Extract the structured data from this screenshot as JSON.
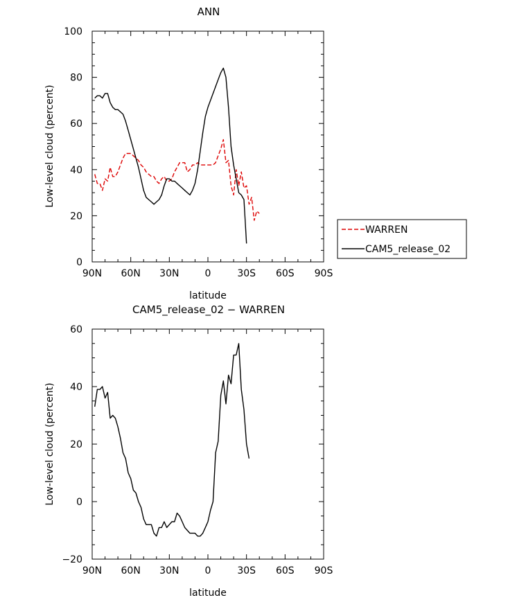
{
  "chart_data": [
    {
      "type": "line",
      "title": "ANN",
      "xlabel": "latitude",
      "ylabel": "Low-level cloud (percent)",
      "xlim": [
        90,
        -90
      ],
      "ylim": [
        0,
        100
      ],
      "xticks": [
        90,
        60,
        30,
        0,
        -30,
        -60,
        -90
      ],
      "xtick_labels": [
        "90N",
        "60N",
        "30N",
        "0",
        "30S",
        "60S",
        "90S"
      ],
      "yticks": [
        0,
        20,
        40,
        60,
        80,
        100
      ],
      "ytick_labels": [
        "0",
        "20",
        "40",
        "60",
        "80",
        "100"
      ],
      "legend_position": "right",
      "series": [
        {
          "name": "WARREN",
          "color": "#dd0000",
          "dash": "dashed",
          "points": [
            [
              88,
              38
            ],
            [
              86,
              34
            ],
            [
              84,
              34
            ],
            [
              82,
              31
            ],
            [
              80,
              36
            ],
            [
              78,
              35
            ],
            [
              76,
              41
            ],
            [
              74,
              37
            ],
            [
              72,
              37
            ],
            [
              70,
              39
            ],
            [
              68,
              42
            ],
            [
              66,
              45
            ],
            [
              64,
              47
            ],
            [
              62,
              47
            ],
            [
              60,
              47
            ],
            [
              58,
              46
            ],
            [
              56,
              45
            ],
            [
              54,
              44
            ],
            [
              52,
              42
            ],
            [
              50,
              41
            ],
            [
              48,
              39
            ],
            [
              46,
              38
            ],
            [
              44,
              37
            ],
            [
              42,
              37
            ],
            [
              40,
              35
            ],
            [
              38,
              34
            ],
            [
              36,
              36
            ],
            [
              34,
              37
            ],
            [
              32,
              35
            ],
            [
              30,
              35
            ],
            [
              28,
              36
            ],
            [
              26,
              39
            ],
            [
              24,
              41
            ],
            [
              22,
              43
            ],
            [
              20,
              43
            ],
            [
              18,
              43
            ],
            [
              16,
              39
            ],
            [
              14,
              40
            ],
            [
              12,
              42
            ],
            [
              10,
              42
            ],
            [
              8,
              43
            ],
            [
              6,
              42
            ],
            [
              4,
              42
            ],
            [
              2,
              42
            ],
            [
              0,
              42
            ],
            [
              -2,
              42
            ],
            [
              -4,
              42
            ],
            [
              -6,
              43
            ],
            [
              -8,
              46
            ],
            [
              -10,
              49
            ],
            [
              -12,
              53
            ],
            [
              -14,
              43
            ],
            [
              -16,
              44
            ],
            [
              -18,
              33
            ],
            [
              -20,
              29
            ],
            [
              -22,
              40
            ],
            [
              -24,
              33
            ],
            [
              -26,
              39
            ],
            [
              -28,
              32
            ],
            [
              -30,
              33
            ],
            [
              -32,
              25
            ],
            [
              -34,
              28
            ],
            [
              -36,
              18
            ],
            [
              -38,
              22
            ],
            [
              -40,
              21
            ]
          ]
        },
        {
          "name": "CAM5_release_02",
          "color": "#000000",
          "dash": "solid",
          "points": [
            [
              88,
              71
            ],
            [
              86,
              72
            ],
            [
              84,
              72
            ],
            [
              82,
              71
            ],
            [
              80,
              73
            ],
            [
              78,
              73
            ],
            [
              76,
              69
            ],
            [
              74,
              67
            ],
            [
              72,
              66
            ],
            [
              70,
              66
            ],
            [
              68,
              65
            ],
            [
              66,
              64
            ],
            [
              64,
              61
            ],
            [
              62,
              57
            ],
            [
              60,
              53
            ],
            [
              58,
              49
            ],
            [
              56,
              45
            ],
            [
              54,
              41
            ],
            [
              52,
              36
            ],
            [
              50,
              31
            ],
            [
              48,
              28
            ],
            [
              46,
              27
            ],
            [
              44,
              26
            ],
            [
              42,
              25
            ],
            [
              40,
              26
            ],
            [
              38,
              27
            ],
            [
              36,
              29
            ],
            [
              34,
              33
            ],
            [
              32,
              36
            ],
            [
              30,
              36
            ],
            [
              28,
              35
            ],
            [
              26,
              35
            ],
            [
              24,
              34
            ],
            [
              22,
              33
            ],
            [
              20,
              32
            ],
            [
              18,
              31
            ],
            [
              16,
              30
            ],
            [
              14,
              29
            ],
            [
              12,
              31
            ],
            [
              10,
              34
            ],
            [
              8,
              40
            ],
            [
              6,
              48
            ],
            [
              4,
              56
            ],
            [
              2,
              63
            ],
            [
              0,
              67
            ],
            [
              -2,
              70
            ],
            [
              -4,
              73
            ],
            [
              -6,
              76
            ],
            [
              -8,
              79
            ],
            [
              -10,
              82
            ],
            [
              -12,
              84
            ],
            [
              -14,
              80
            ],
            [
              -16,
              67
            ],
            [
              -18,
              50
            ],
            [
              -20,
              42
            ],
            [
              -22,
              36
            ],
            [
              -24,
              30
            ],
            [
              -26,
              29
            ],
            [
              -28,
              27
            ],
            [
              -30,
              8
            ]
          ]
        }
      ]
    },
    {
      "type": "line",
      "title": "CAM5_release_02 − WARREN",
      "xlabel": "latitude",
      "ylabel": "Low-level cloud (percent)",
      "xlim": [
        90,
        -90
      ],
      "ylim": [
        -20,
        60
      ],
      "xticks": [
        90,
        60,
        30,
        0,
        -30,
        -60,
        -90
      ],
      "xtick_labels": [
        "90N",
        "60N",
        "30N",
        "0",
        "30S",
        "60S",
        "90S"
      ],
      "yticks": [
        -20,
        0,
        20,
        40,
        60
      ],
      "ytick_labels": [
        "−20",
        "0",
        "20",
        "40",
        "60"
      ],
      "series": [
        {
          "name": "CAM5_release_02 − WARREN",
          "color": "#000000",
          "dash": "solid",
          "points": [
            [
              88,
              33
            ],
            [
              86,
              39
            ],
            [
              84,
              39
            ],
            [
              82,
              40
            ],
            [
              80,
              36
            ],
            [
              78,
              38
            ],
            [
              76,
              29
            ],
            [
              74,
              30
            ],
            [
              72,
              29
            ],
            [
              70,
              26
            ],
            [
              68,
              22
            ],
            [
              66,
              17
            ],
            [
              64,
              15
            ],
            [
              62,
              10
            ],
            [
              60,
              8
            ],
            [
              58,
              4
            ],
            [
              56,
              3
            ],
            [
              54,
              0
            ],
            [
              52,
              -2
            ],
            [
              50,
              -6
            ],
            [
              48,
              -8
            ],
            [
              46,
              -8
            ],
            [
              44,
              -8
            ],
            [
              42,
              -11
            ],
            [
              40,
              -12
            ],
            [
              38,
              -9
            ],
            [
              36,
              -9
            ],
            [
              34,
              -7
            ],
            [
              32,
              -9
            ],
            [
              30,
              -8
            ],
            [
              28,
              -7
            ],
            [
              26,
              -7
            ],
            [
              24,
              -4
            ],
            [
              22,
              -5
            ],
            [
              20,
              -7
            ],
            [
              18,
              -9
            ],
            [
              16,
              -10
            ],
            [
              14,
              -11
            ],
            [
              12,
              -11
            ],
            [
              10,
              -11
            ],
            [
              8,
              -12
            ],
            [
              6,
              -12
            ],
            [
              4,
              -11
            ],
            [
              2,
              -9
            ],
            [
              0,
              -7
            ],
            [
              -2,
              -3
            ],
            [
              -4,
              0
            ],
            [
              -6,
              17
            ],
            [
              -8,
              21
            ],
            [
              -10,
              37
            ],
            [
              -12,
              42
            ],
            [
              -14,
              34
            ],
            [
              -16,
              44
            ],
            [
              -18,
              41
            ],
            [
              -20,
              51
            ],
            [
              -22,
              51
            ],
            [
              -24,
              55
            ],
            [
              -26,
              39
            ],
            [
              -28,
              32
            ],
            [
              -30,
              20
            ],
            [
              -32,
              15
            ]
          ]
        }
      ]
    }
  ]
}
